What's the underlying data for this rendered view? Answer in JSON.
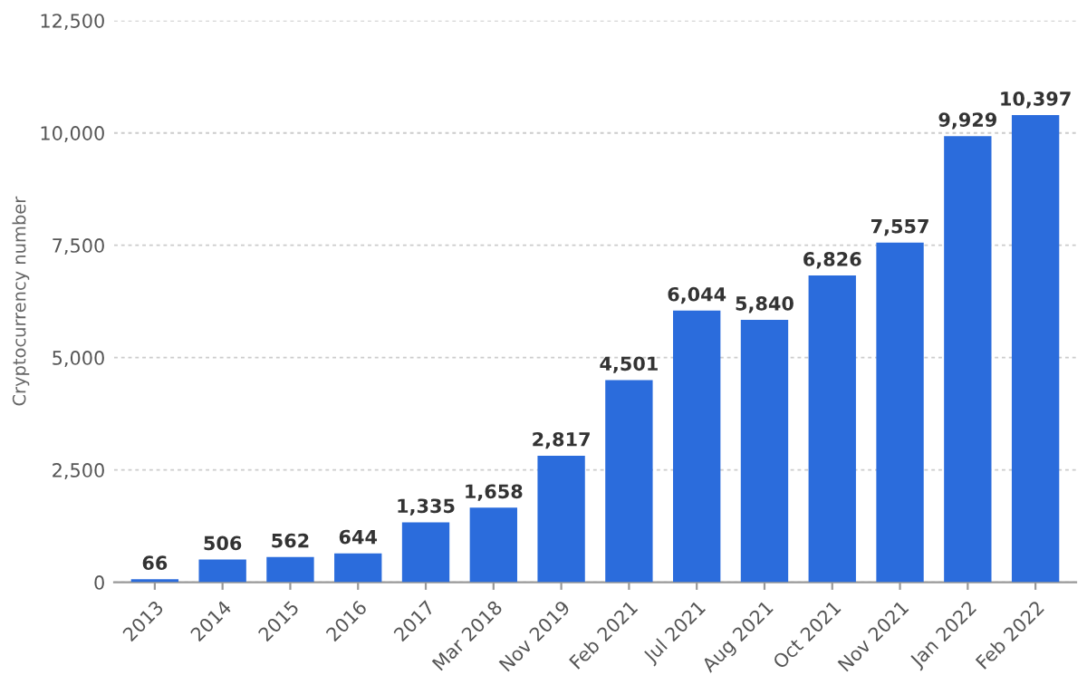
{
  "chart_data": {
    "type": "bar",
    "ylabel": "Cryptocurrency number",
    "categories": [
      "2013",
      "2014",
      "2015",
      "2016",
      "2017",
      "Mar 2018",
      "Nov 2019",
      "Feb 2021",
      "Jul 2021",
      "Aug 2021",
      "Oct 2021",
      "Nov 2021",
      "Jan 2022",
      "Feb 2022"
    ],
    "values": [
      66,
      506,
      562,
      644,
      1335,
      1658,
      2817,
      4501,
      6044,
      5840,
      6826,
      7557,
      9929,
      10397
    ],
    "value_labels": [
      "66",
      "506",
      "562",
      "644",
      "1,335",
      "1,658",
      "2,817",
      "4,501",
      "6,044",
      "5,840",
      "6,826",
      "7,557",
      "9,929",
      "10,397"
    ],
    "color": "#2b6cdc",
    "ylim": [
      0,
      12500
    ],
    "yticks": [
      0,
      {
        "value": 2500,
        "label": "2,500"
      },
      {
        "value": 5000,
        "label": "5,000"
      },
      {
        "value": 7500,
        "label": "7,500"
      },
      {
        "value": 10000,
        "label": "10,000"
      },
      {
        "value": 12500,
        "label": "12,500"
      }
    ],
    "grid": "y"
  }
}
